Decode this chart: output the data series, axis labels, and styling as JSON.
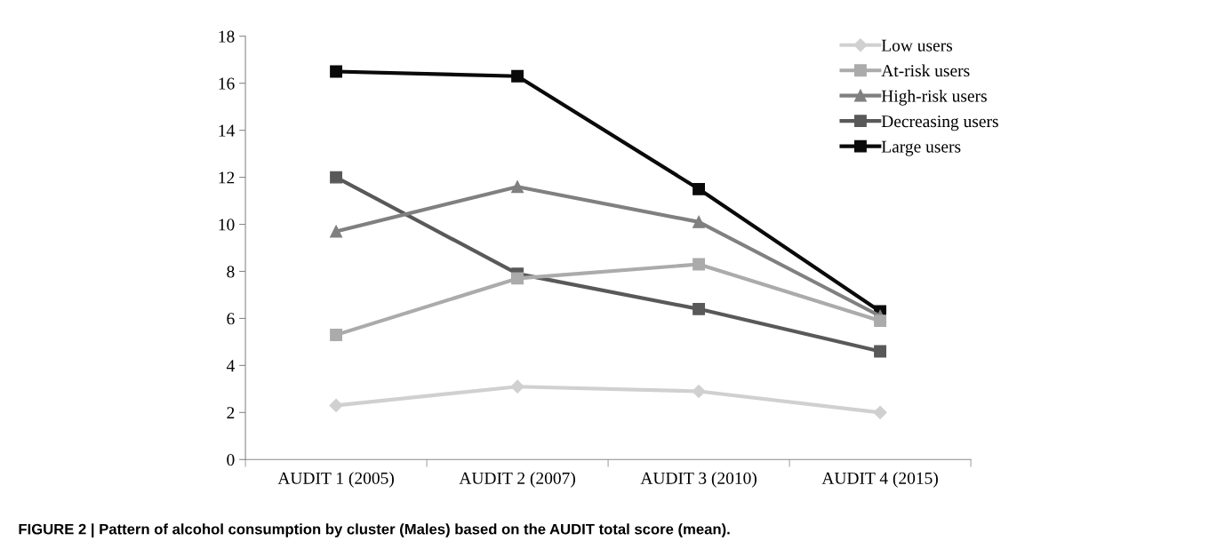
{
  "chart_data": {
    "type": "line",
    "categories": [
      "AUDIT 1 (2005)",
      "AUDIT 2 (2007)",
      "AUDIT 3 (2010)",
      "AUDIT 4 (2015)"
    ],
    "series": [
      {
        "name": "Low users",
        "color": "#d0d0d0",
        "marker": "diamond",
        "values": [
          2.3,
          3.1,
          2.9,
          2.0
        ]
      },
      {
        "name": "At-risk users",
        "color": "#ababab",
        "marker": "square",
        "values": [
          5.3,
          7.7,
          8.3,
          5.9
        ]
      },
      {
        "name": "High-risk users",
        "color": "#808080",
        "marker": "triangle",
        "values": [
          9.7,
          11.6,
          10.1,
          6.1
        ]
      },
      {
        "name": "Decreasing users",
        "color": "#595959",
        "marker": "square",
        "values": [
          12.0,
          7.9,
          6.4,
          4.6
        ]
      },
      {
        "name": "Large users",
        "color": "#0a0a0a",
        "marker": "square",
        "values": [
          16.5,
          16.3,
          11.5,
          6.3
        ]
      }
    ],
    "ylim": [
      0,
      18
    ],
    "yticks": [
      0,
      2,
      4,
      6,
      8,
      10,
      12,
      14,
      16,
      18
    ],
    "grid": false,
    "legend": "top right",
    "line_style": "solid",
    "annotations": [
      "FIGURE 2 | Pattern of alcohol consumption by cluster (Males) based on the AUDIT total score (mean)."
    ]
  }
}
